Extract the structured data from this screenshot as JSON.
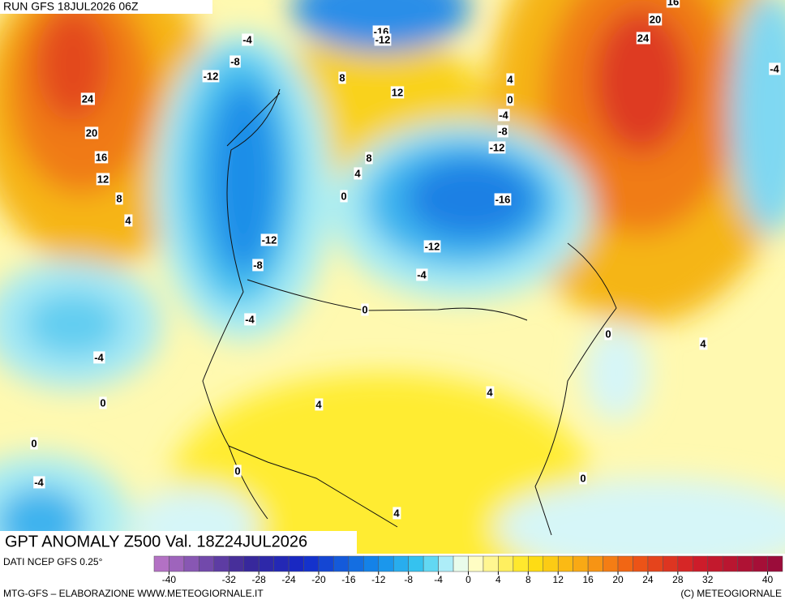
{
  "header": {
    "run": "RUN GFS 18JUL2026 06Z"
  },
  "title": "GPT ANOMALY Z500 Val. 18Z24JUL2026",
  "source": "DATI NCEP GFS 0.25°",
  "footer_left": "MTG-GFS – ELABORAZIONE WWW.METEOGIORNALE.IT",
  "footer_right": "(C) METEOGIORNALE",
  "colorbar_ticks": [
    -40,
    -32,
    -28,
    -24,
    -20,
    -16,
    -12,
    -8,
    -4,
    0,
    4,
    8,
    12,
    16,
    20,
    24,
    28,
    32,
    40
  ],
  "contour_labels": [
    -16,
    -12,
    -4,
    -8,
    -12,
    24,
    20,
    16,
    12,
    8,
    4,
    8,
    12,
    8,
    4,
    0,
    -4,
    -12,
    -8,
    -4,
    -12,
    -16,
    -12,
    -8,
    -4,
    0,
    4,
    20,
    24,
    16,
    -4,
    0,
    0,
    4,
    -4,
    0,
    4,
    4,
    0,
    -4,
    0,
    0,
    4
  ]
}
